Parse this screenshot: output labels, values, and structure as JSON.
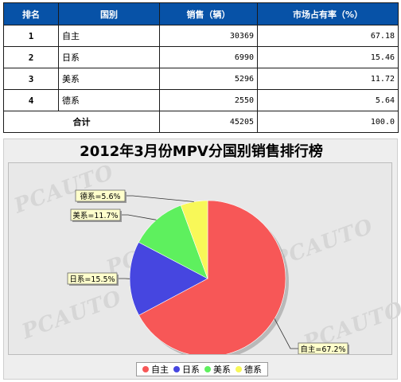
{
  "table": {
    "headers": {
      "rank": "排名",
      "country": "国别",
      "sales": "销售（辆）",
      "share": "市场占有率（%）"
    },
    "rows": [
      {
        "rank": "1",
        "country": "自主",
        "sales": "30369",
        "share": "67.18"
      },
      {
        "rank": "2",
        "country": "日系",
        "sales": "6990",
        "share": "15.46"
      },
      {
        "rank": "3",
        "country": "美系",
        "sales": "5296",
        "share": "11.72"
      },
      {
        "rank": "4",
        "country": "德系",
        "sales": "2550",
        "share": "5.64"
      }
    ],
    "total": {
      "label": "合计",
      "sales": "45205",
      "share": "100.0"
    }
  },
  "chart_data": {
    "type": "pie",
    "title": "2012年3月份MPV分国别销售排行榜",
    "slices": [
      {
        "name": "自主",
        "value": 67.2,
        "label": "自主=67.2%",
        "color": "#f75757"
      },
      {
        "name": "日系",
        "value": 15.5,
        "label": "日系=15.5%",
        "color": "#4646e0"
      },
      {
        "name": "美系",
        "value": 11.7,
        "label": "美系=11.7%",
        "color": "#5ef05e"
      },
      {
        "name": "德系",
        "value": 5.6,
        "label": "德系=5.6%",
        "color": "#f8f858"
      }
    ],
    "legend": {
      "position": "bottom",
      "items": [
        "自主",
        "日系",
        "美系",
        "德系"
      ]
    }
  },
  "watermark": {
    "text": "PCAUTO"
  }
}
